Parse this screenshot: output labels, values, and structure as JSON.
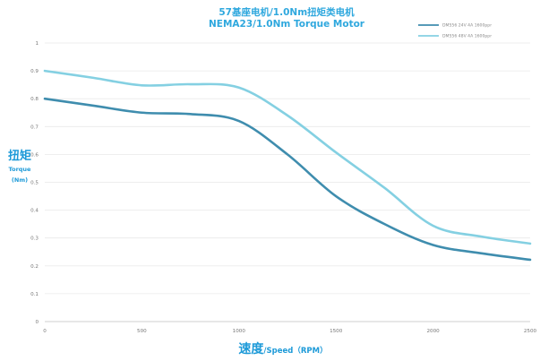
{
  "chart_data": {
    "type": "line",
    "title": "57基座电机/1.0Nm扭矩类电机",
    "subtitle": "NEMA23/1.0Nm Torque Motor",
    "xlabel": {
      "main": "速度",
      "sub": "/Speed（RPM）"
    },
    "ylabel": {
      "main": "扭矩",
      "line2": "Torque",
      "line3": "(Nm)"
    },
    "xlim": [
      0,
      2500
    ],
    "ylim": [
      0,
      1
    ],
    "x_tick_labels": [
      "0",
      "500",
      "1000",
      "1500",
      "2000",
      "2500"
    ],
    "y_tick_labels": [
      "0",
      "0.1",
      "0.2",
      "0.3",
      "0.4",
      "0.5",
      "0.6",
      "0.7",
      "0.8",
      "0.9",
      "1"
    ],
    "grid": "horizontal",
    "legend_position": "top-right",
    "x": [
      0,
      250,
      500,
      750,
      1000,
      1250,
      1500,
      1750,
      2000,
      2250,
      2500
    ],
    "series": [
      {
        "name": "DM556 24V 4A 1600ppr",
        "color": "#3f8dae",
        "values": [
          0.8,
          0.775,
          0.75,
          0.745,
          0.72,
          0.6,
          0.45,
          0.35,
          0.275,
          0.245,
          0.222
        ]
      },
      {
        "name": "DM556 48V 4A 1600ppr",
        "color": "#84d0e2",
        "values": [
          0.9,
          0.875,
          0.848,
          0.852,
          0.84,
          0.74,
          0.607,
          0.48,
          0.344,
          0.305,
          0.28
        ]
      }
    ]
  }
}
